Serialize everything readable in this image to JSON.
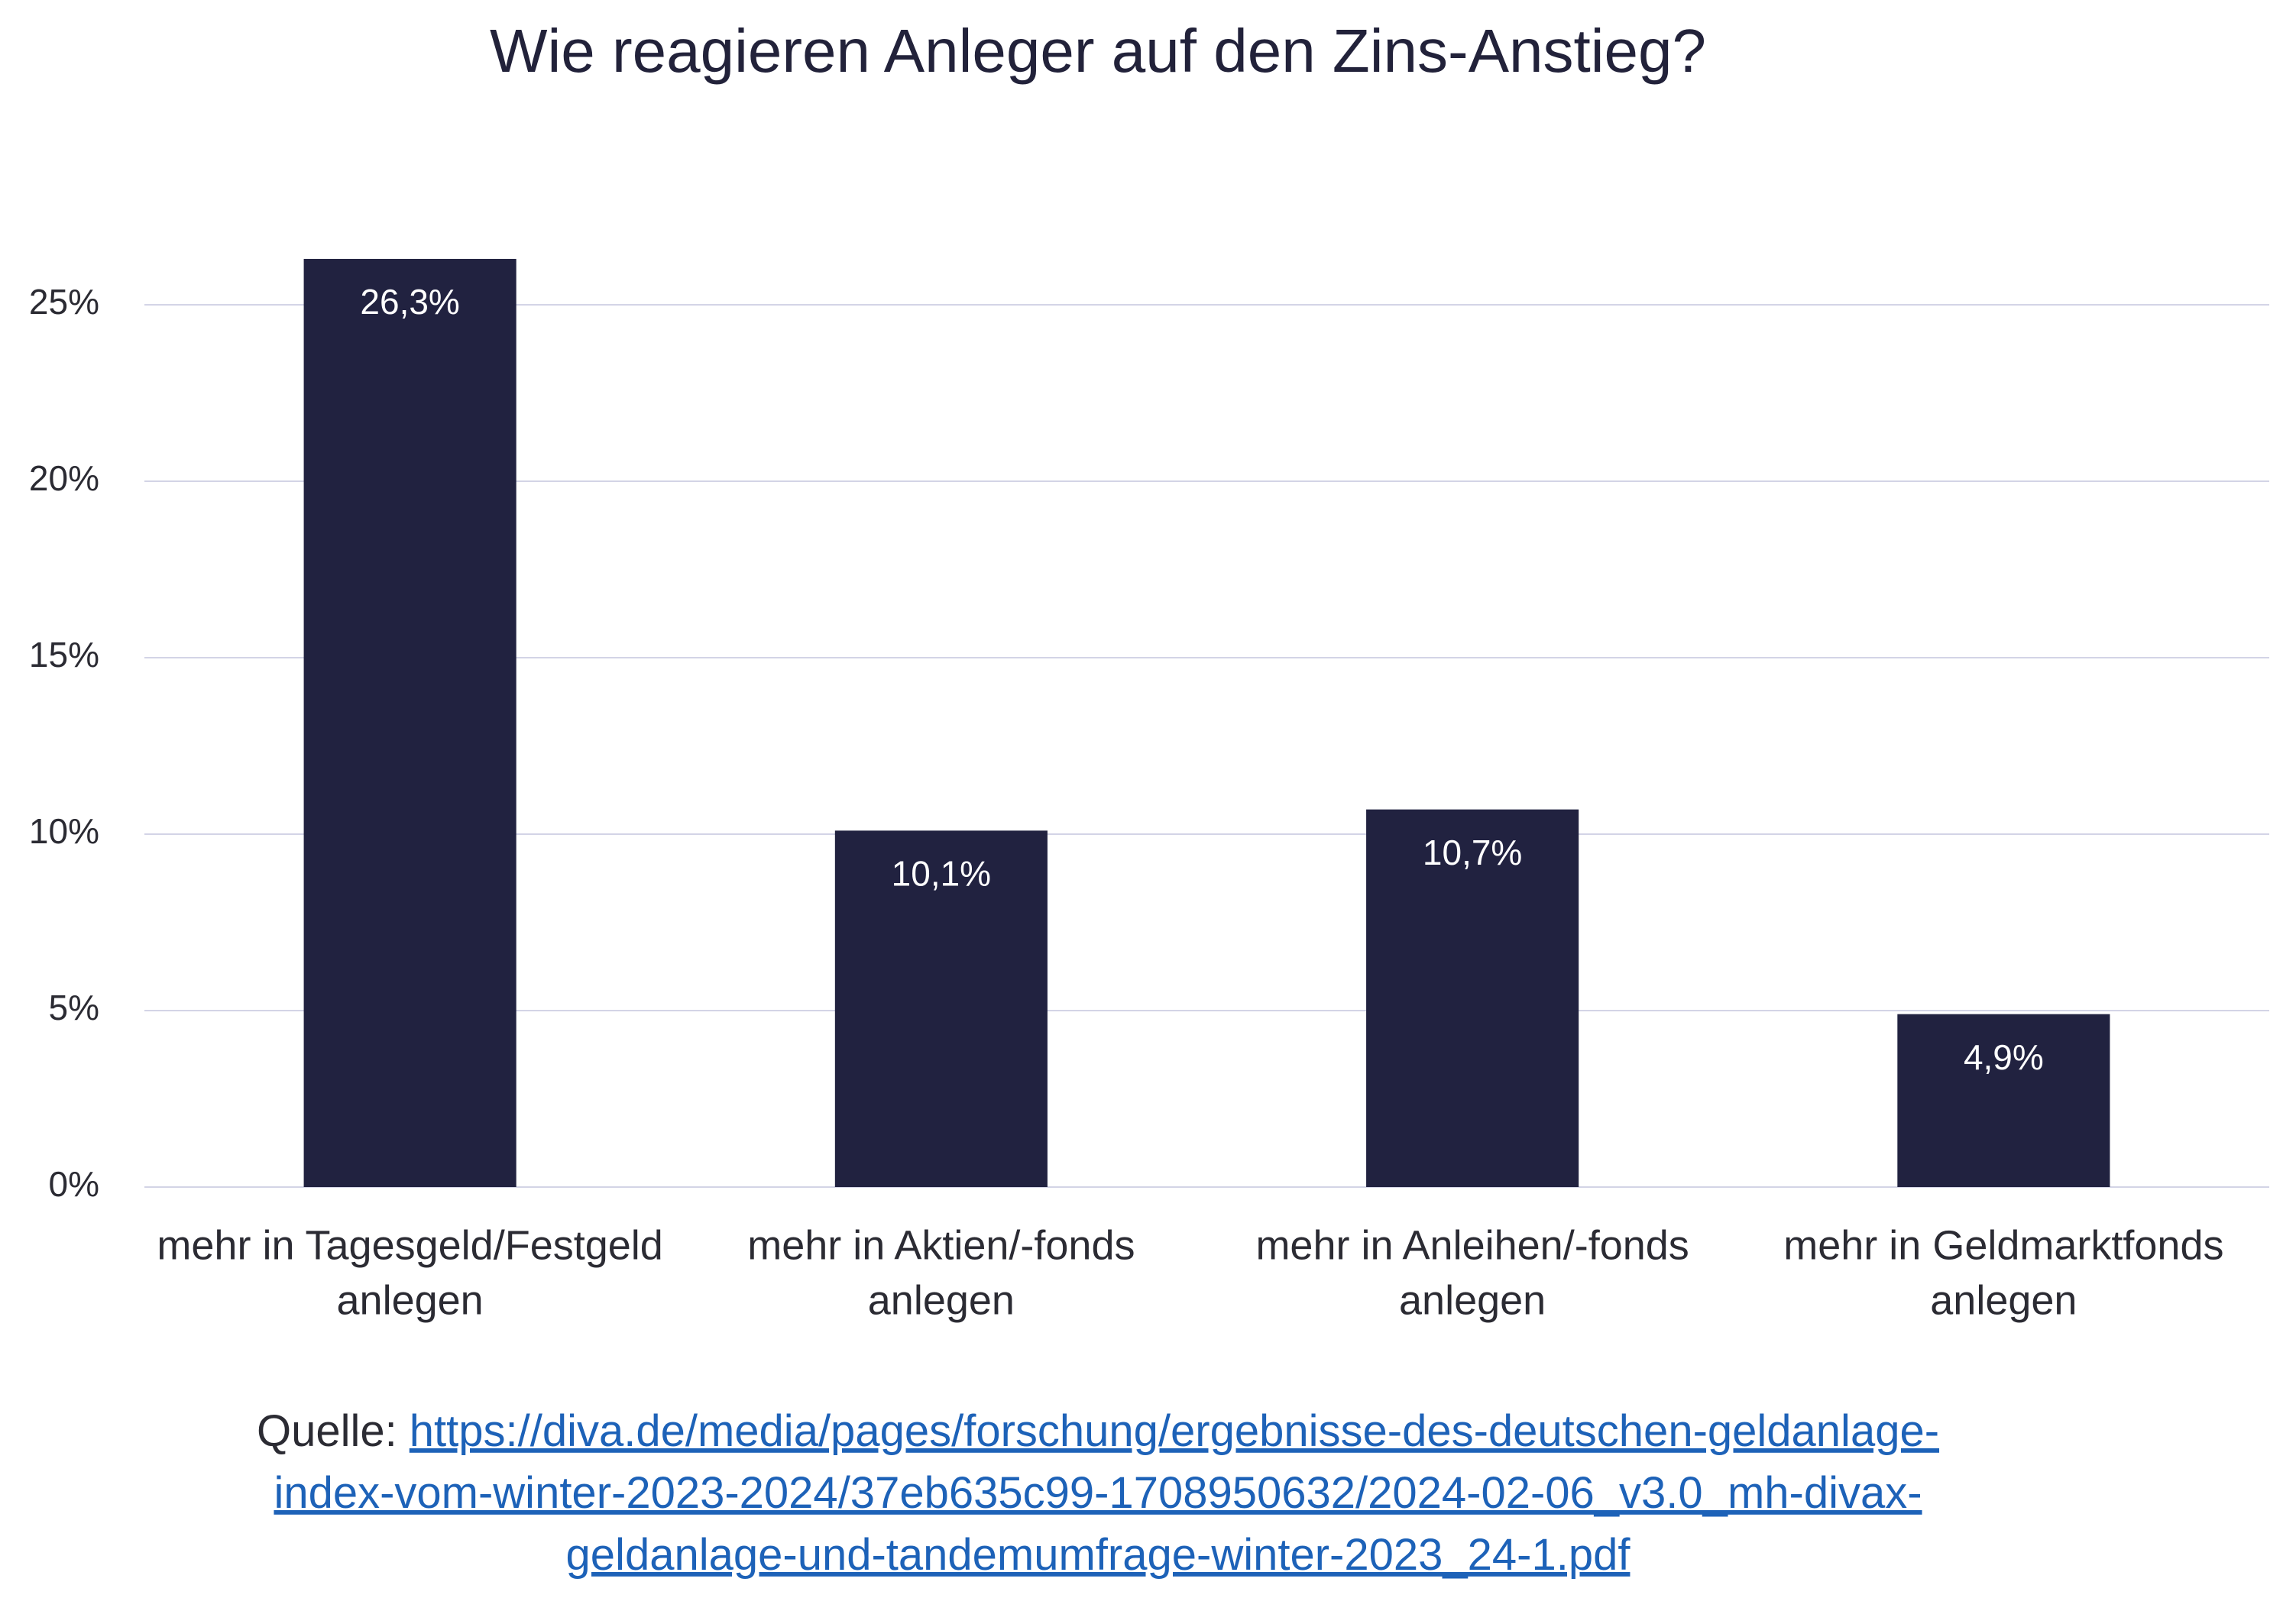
{
  "chart_data": {
    "type": "bar",
    "title": "Wie reagieren Anleger auf den Zins-Anstieg?",
    "categories": [
      [
        "mehr in Tagesgeld/Festgeld",
        "anlegen"
      ],
      [
        "mehr in Aktien/-fonds",
        "anlegen"
      ],
      [
        "mehr in Anleihen/-fonds",
        "anlegen"
      ],
      [
        "mehr in Geldmarktfonds",
        "anlegen"
      ]
    ],
    "values": [
      26.3,
      10.1,
      10.7,
      4.9
    ],
    "value_labels": [
      "26,3%",
      "10,1%",
      "10,7%",
      "4,9%"
    ],
    "color": "#212240",
    "ylim": [
      0,
      25
    ],
    "yticks": [
      {
        "value": 0,
        "label": "0%"
      },
      {
        "value": 5,
        "label": "5%"
      },
      {
        "value": 10,
        "label": "10%"
      },
      {
        "value": 15,
        "label": "15%"
      },
      {
        "value": 20,
        "label": "20%"
      },
      {
        "value": 25,
        "label": "25%"
      }
    ],
    "grid": true,
    "source": {
      "label": "Quelle:",
      "link_lines": [
        "https://diva.de/media/pages/forschung/ergebnisse-des-deutschen-geldanlage-",
        "index-vom-winter-2023-2024/37eb635c99-1708950632/2024-02-06_v3.0_mh-divax-",
        "geldanlage-und-tandemumfrage-winter-2023_24-1.pdf"
      ]
    }
  }
}
